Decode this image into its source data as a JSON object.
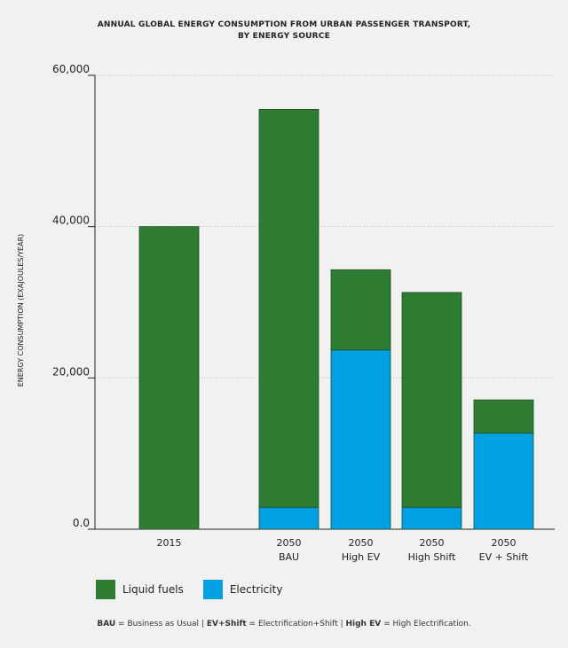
{
  "chart_data": {
    "type": "bar",
    "stacked": true,
    "title_line1": "ANNUAL GLOBAL ENERGY CONSUMPTION FROM URBAN PASSENGER TRANSPORT,",
    "title_line2": "BY ENERGY SOURCE",
    "ylabel": "ENERGY CONSUMPTION (EXAJOULES/YEAR)",
    "xlabel": "",
    "ylim": [
      0,
      60000
    ],
    "yticks": [
      {
        "value": 0,
        "label": "0.0"
      },
      {
        "value": 20000,
        "label": "20,000"
      },
      {
        "value": 40000,
        "label": "40,000"
      },
      {
        "value": 60000,
        "label": "60,000"
      }
    ],
    "grid": true,
    "categories": [
      {
        "line1": "2015",
        "line2": ""
      },
      {
        "line1": "2050",
        "line2": "BAU"
      },
      {
        "line1": "2050",
        "line2": "High EV"
      },
      {
        "line1": "2050",
        "line2": "High Shift"
      },
      {
        "line1": "2050",
        "line2": "EV + Shift"
      }
    ],
    "series": [
      {
        "name": "Electricity",
        "color": "#00a0e3",
        "values": [
          0,
          2900,
          23700,
          2900,
          12700
        ]
      },
      {
        "name": "Liquid fuels",
        "color": "#2e7d32",
        "values": [
          40000,
          52600,
          10600,
          28400,
          4400
        ]
      }
    ],
    "legend": {
      "placement": "bottom-left",
      "items": [
        "Liquid fuels",
        "Electricity"
      ]
    }
  },
  "footnote": {
    "t1b": "BAU",
    "t1": " = Business as Usual | ",
    "t2b": "EV+Shift",
    "t2": " = Electrification+Shift | ",
    "t3b": "High EV",
    "t3": " = High Electrification."
  }
}
